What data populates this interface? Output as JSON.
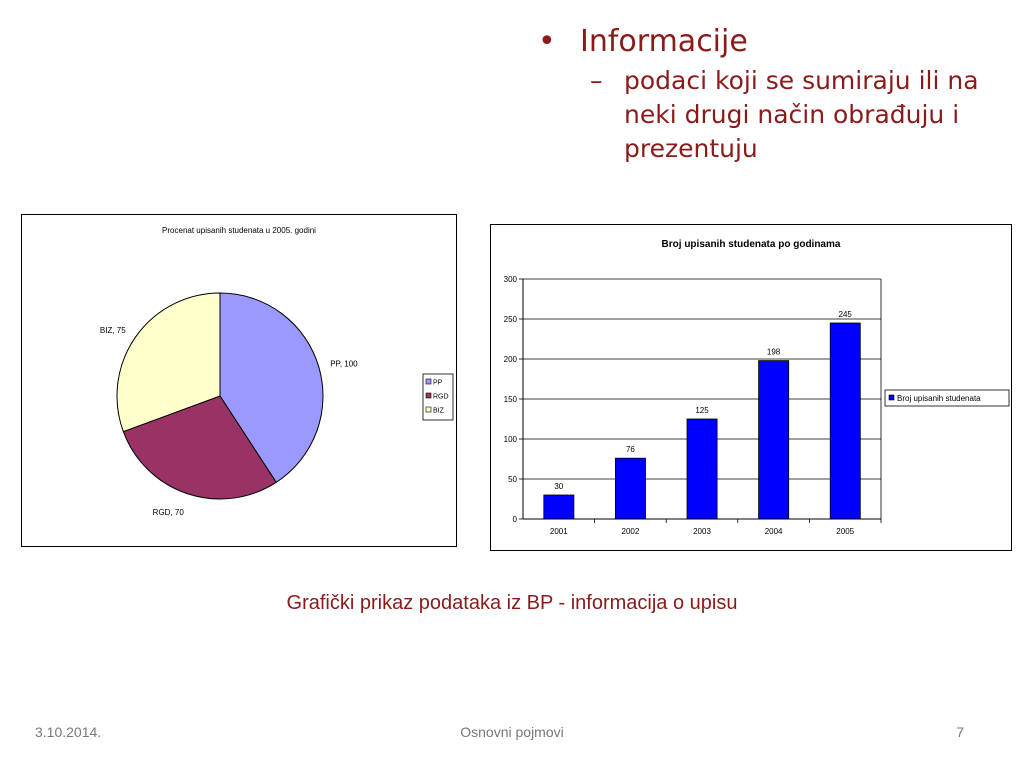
{
  "slide": {
    "bullet": "Informacije",
    "sub_bullet": "podaci koji se sumiraju ili na neki drugi način obrađuju i prezentuju",
    "caption": "Grafički prikaz podataka iz BP - informacija o upisu",
    "footer": {
      "date": "3.10.2014.",
      "center": "Osnovni pojmovi",
      "page": "7"
    }
  },
  "colors": {
    "text_accent": "#8b1a1a",
    "bar": "#0000ff",
    "pp": "#9999ff",
    "rgd": "#993366",
    "biz": "#ffffcc"
  },
  "chart_data": [
    {
      "type": "pie",
      "title": "Procenat upisanih studenata u 2005. godini",
      "labels": [
        "PP",
        "RGD",
        "BIZ"
      ],
      "values": [
        100,
        70,
        75
      ],
      "data_labels": [
        "PP, 100",
        "RGD, 70",
        "BIZ, 75"
      ],
      "colors": [
        "#9999ff",
        "#993366",
        "#ffffcc"
      ],
      "legend": "right"
    },
    {
      "type": "bar",
      "title": "Broj upisanih studenata po godinama",
      "categories": [
        "2001",
        "2002",
        "2003",
        "2004",
        "2005"
      ],
      "series": [
        {
          "name": "Broj upisanih studenata",
          "values": [
            30,
            76,
            125,
            198,
            245
          ]
        }
      ],
      "ylim": [
        0,
        300
      ],
      "yticks": [
        0,
        50,
        100,
        150,
        200,
        250,
        300
      ],
      "grid": true,
      "legend": "right",
      "xlabel": "",
      "ylabel": ""
    }
  ]
}
